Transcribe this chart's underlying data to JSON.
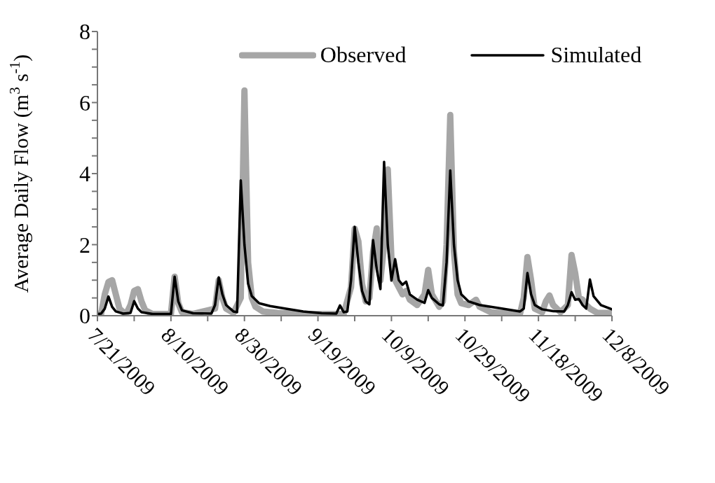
{
  "chart_data": {
    "type": "line",
    "ylabel": "Average Daily Flow (m$^{3}$ s$^{-1}$)",
    "xlim": [
      "2009-07-21",
      "2009-12-08"
    ],
    "xticks": [
      {
        "value": "2009-07-21",
        "label": "7/21/2009"
      },
      {
        "value": "2009-07-31",
        "label": null
      },
      {
        "value": "2009-08-10",
        "label": "8/10/2009"
      },
      {
        "value": "2009-08-20",
        "label": null
      },
      {
        "value": "2009-08-30",
        "label": "8/30/2009"
      },
      {
        "value": "2009-09-09",
        "label": null
      },
      {
        "value": "2009-09-19",
        "label": "9/19/2009"
      },
      {
        "value": "2009-09-29",
        "label": null
      },
      {
        "value": "2009-10-09",
        "label": "10/9/2009"
      },
      {
        "value": "2009-10-19",
        "label": null
      },
      {
        "value": "2009-10-29",
        "label": "10/29/2009"
      },
      {
        "value": "2009-11-08",
        "label": null
      },
      {
        "value": "2009-11-18",
        "label": "11/18/2009"
      },
      {
        "value": "2009-11-28",
        "label": null
      },
      {
        "value": "2009-12-08",
        "label": "12/8/2009"
      }
    ],
    "ylim": [
      0,
      8
    ],
    "yticks": [
      0,
      {
        "value": 0.5,
        "label": null
      },
      {
        "value": 1,
        "label": null
      },
      {
        "value": 1.5,
        "label": null
      },
      2,
      {
        "value": 2.5,
        "label": null
      },
      {
        "value": 3,
        "label": null
      },
      {
        "value": 3.5,
        "label": null
      },
      4,
      {
        "value": 4.5,
        "label": null
      },
      {
        "value": 5,
        "label": null
      },
      {
        "value": 5.5,
        "label": null
      },
      6,
      {
        "value": 6.5,
        "label": null
      },
      {
        "value": 7,
        "label": null
      },
      {
        "value": 7.5,
        "label": null
      },
      8
    ],
    "grid": false,
    "legend": "top",
    "marker": "none",
    "line_style": "solid",
    "series": [
      {
        "name": "Observed",
        "color": "#a6a6a6",
        "x": [
          "2009-07-21",
          "2009-07-22",
          "2009-07-23",
          "2009-07-24",
          "2009-07-25",
          "2009-07-26",
          "2009-07-27",
          "2009-07-28",
          "2009-07-29",
          "2009-07-30",
          "2009-07-31",
          "2009-08-01",
          "2009-08-02",
          "2009-08-03",
          "2009-08-05",
          "2009-08-10",
          "2009-08-11",
          "2009-08-12",
          "2009-08-13",
          "2009-08-16",
          "2009-08-22",
          "2009-08-23",
          "2009-08-24",
          "2009-08-25",
          "2009-08-27",
          "2009-08-29",
          "2009-08-30",
          "2009-08-31",
          "2009-09-01",
          "2009-09-02",
          "2009-09-04",
          "2009-09-08",
          "2009-09-15",
          "2009-09-24",
          "2009-09-26",
          "2009-09-28",
          "2009-09-29",
          "2009-09-30",
          "2009-10-01",
          "2009-10-02",
          "2009-10-03",
          "2009-10-04",
          "2009-10-05",
          "2009-10-06",
          "2009-10-07",
          "2009-10-08",
          "2009-10-09",
          "2009-10-10",
          "2009-10-11",
          "2009-10-12",
          "2009-10-13",
          "2009-10-14",
          "2009-10-16",
          "2009-10-18",
          "2009-10-19",
          "2009-10-20",
          "2009-10-22",
          "2009-10-23",
          "2009-10-24",
          "2009-10-25",
          "2009-10-26",
          "2009-10-27",
          "2009-10-28",
          "2009-10-30",
          "2009-11-01",
          "2009-11-02",
          "2009-11-05",
          "2009-11-10",
          "2009-11-13",
          "2009-11-14",
          "2009-11-15",
          "2009-11-16",
          "2009-11-17",
          "2009-11-19",
          "2009-11-20",
          "2009-11-21",
          "2009-11-22",
          "2009-11-24",
          "2009-11-26",
          "2009-11-27",
          "2009-11-28",
          "2009-11-29",
          "2009-11-30",
          "2009-12-01",
          "2009-12-02",
          "2009-12-04",
          "2009-12-08"
        ],
        "values": [
          0.05,
          0.05,
          0.6,
          0.95,
          1.0,
          0.6,
          0.2,
          0.1,
          0.08,
          0.3,
          0.7,
          0.75,
          0.4,
          0.15,
          0.05,
          0.05,
          1.1,
          0.35,
          0.1,
          0.05,
          0.2,
          1.0,
          0.5,
          0.2,
          0.08,
          0.5,
          6.34,
          1.5,
          0.5,
          0.25,
          0.12,
          0.08,
          0.05,
          0.05,
          0.05,
          0.8,
          2.45,
          2.1,
          0.9,
          0.4,
          0.5,
          1.8,
          2.46,
          1.0,
          2.0,
          4.12,
          1.6,
          1.0,
          0.8,
          0.6,
          0.7,
          0.45,
          0.3,
          0.6,
          1.29,
          0.6,
          0.25,
          0.4,
          2.0,
          5.65,
          1.8,
          0.6,
          0.35,
          0.3,
          0.45,
          0.25,
          0.1,
          0.06,
          0.06,
          0.5,
          1.65,
          1.0,
          0.2,
          0.1,
          0.4,
          0.57,
          0.3,
          0.1,
          0.3,
          1.71,
          1.2,
          0.5,
          0.45,
          0.3,
          0.2,
          0.08,
          0.08
        ]
      },
      {
        "name": "Simulated",
        "color": "#000000",
        "x": [
          "2009-07-21",
          "2009-07-22",
          "2009-07-23",
          "2009-07-24",
          "2009-07-25",
          "2009-07-26",
          "2009-07-28",
          "2009-07-30",
          "2009-07-31",
          "2009-08-01",
          "2009-08-02",
          "2009-08-05",
          "2009-08-10",
          "2009-08-11",
          "2009-08-12",
          "2009-08-13",
          "2009-08-16",
          "2009-08-21",
          "2009-08-22",
          "2009-08-23",
          "2009-08-24",
          "2009-08-25",
          "2009-08-27",
          "2009-08-28",
          "2009-08-29",
          "2009-08-30",
          "2009-08-31",
          "2009-09-01",
          "2009-09-03",
          "2009-09-06",
          "2009-09-10",
          "2009-09-15",
          "2009-09-20",
          "2009-09-24",
          "2009-09-25",
          "2009-09-26",
          "2009-09-27",
          "2009-09-28",
          "2009-09-29",
          "2009-09-30",
          "2009-10-01",
          "2009-10-02",
          "2009-10-03",
          "2009-10-04",
          "2009-10-05",
          "2009-10-06",
          "2009-10-07",
          "2009-10-08",
          "2009-10-09",
          "2009-10-10",
          "2009-10-11",
          "2009-10-12",
          "2009-10-13",
          "2009-10-14",
          "2009-10-16",
          "2009-10-18",
          "2009-10-19",
          "2009-10-20",
          "2009-10-22",
          "2009-10-23",
          "2009-10-24",
          "2009-10-25",
          "2009-10-26",
          "2009-10-27",
          "2009-10-28",
          "2009-10-30",
          "2009-11-02",
          "2009-11-08",
          "2009-11-13",
          "2009-11-14",
          "2009-11-15",
          "2009-11-16",
          "2009-11-17",
          "2009-11-19",
          "2009-11-22",
          "2009-11-25",
          "2009-11-26",
          "2009-11-27",
          "2009-11-28",
          "2009-11-29",
          "2009-11-30",
          "2009-12-01",
          "2009-12-02",
          "2009-12-03",
          "2009-12-05",
          "2009-12-08"
        ],
        "values": [
          0.05,
          0.06,
          0.2,
          0.54,
          0.25,
          0.12,
          0.06,
          0.08,
          0.41,
          0.2,
          0.1,
          0.05,
          0.05,
          1.1,
          0.4,
          0.15,
          0.07,
          0.06,
          0.3,
          1.08,
          0.6,
          0.3,
          0.12,
          0.1,
          3.81,
          2.0,
          0.9,
          0.55,
          0.35,
          0.27,
          0.2,
          0.12,
          0.07,
          0.06,
          0.29,
          0.1,
          0.12,
          1.0,
          2.5,
          1.5,
          0.7,
          0.4,
          0.32,
          2.13,
          1.3,
          0.75,
          4.33,
          2.0,
          0.99,
          1.59,
          1.0,
          0.87,
          0.96,
          0.6,
          0.45,
          0.36,
          0.72,
          0.5,
          0.32,
          0.29,
          1.5,
          4.09,
          2.0,
          1.0,
          0.6,
          0.4,
          0.3,
          0.2,
          0.12,
          0.2,
          1.2,
          0.6,
          0.3,
          0.18,
          0.13,
          0.12,
          0.3,
          0.66,
          0.45,
          0.47,
          0.3,
          0.2,
          1.02,
          0.55,
          0.3,
          0.18
        ]
      }
    ]
  }
}
